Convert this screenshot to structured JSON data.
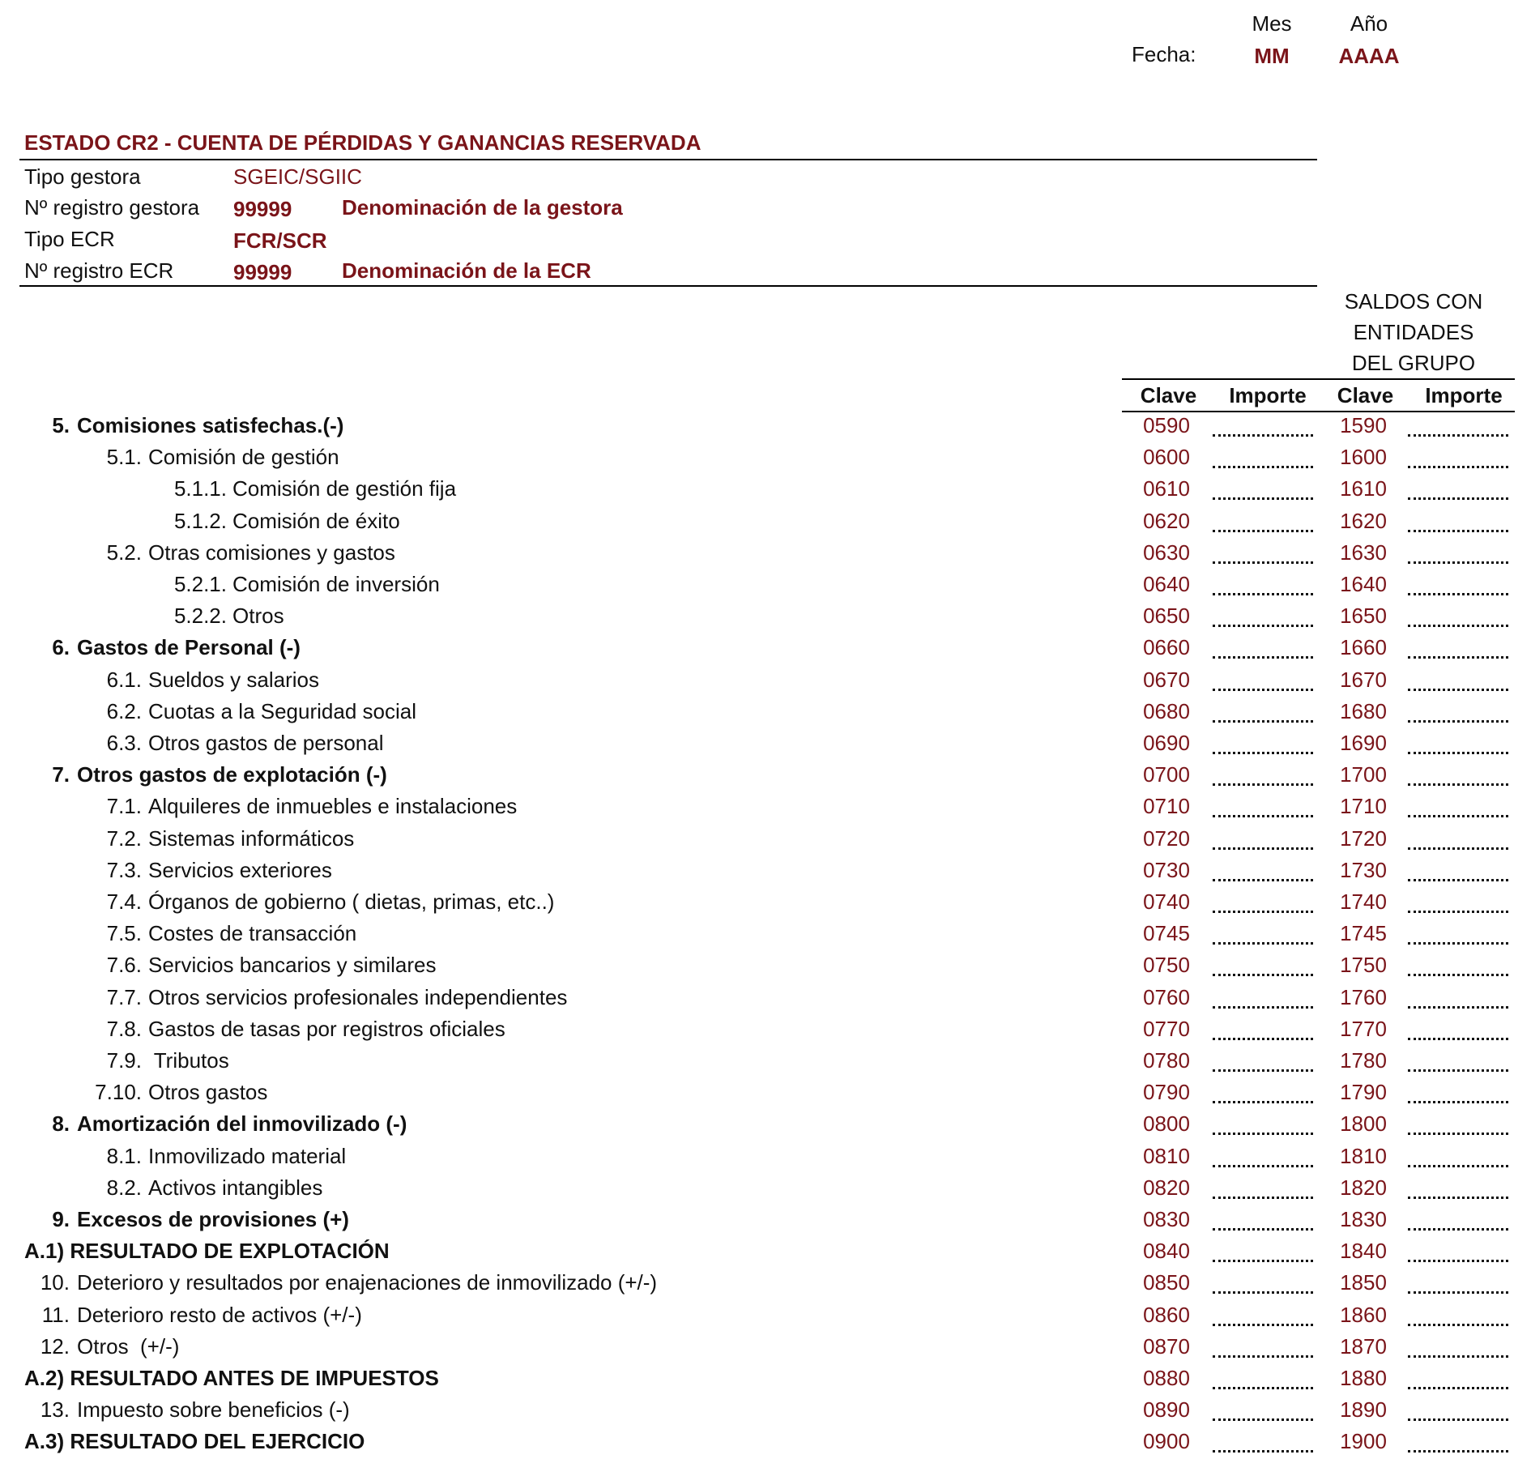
{
  "date": {
    "mes_label": "Mes",
    "ano_label": "Año",
    "fecha_label": "Fecha:",
    "mes_value": "MM",
    "ano_value": "AAAA"
  },
  "header": {
    "title": "ESTADO CR2 - CUENTA DE PÉRDIDAS Y GANANCIAS RESERVADA",
    "tipo_gestora_label": "Tipo gestora",
    "tipo_gestora_value": "SGEIC/SGIIC",
    "registro_gestora_label": "Nº registro gestora",
    "registro_gestora_value": "99999",
    "denominacion_gestora": "Denominación de la gestora",
    "tipo_ecr_label": "Tipo ECR",
    "tipo_ecr_value": "FCR/SCR",
    "registro_ecr_label": "Nº registro ECR",
    "registro_ecr_value": "99999",
    "denominacion_ecr": "Denominación de la ECR"
  },
  "columns": {
    "group_header": [
      "SALDOS CON",
      "ENTIDADES",
      "DEL GRUPO"
    ],
    "clave": "Clave",
    "importe": "Importe"
  },
  "rows": [
    {
      "num": "5.",
      "label": "Comisiones satisfechas.(-)",
      "clave1": "0590",
      "clave2": "1590",
      "level": 1,
      "bold": true
    },
    {
      "num": "5.1.",
      "label": "Comisión de gestión",
      "clave1": "0600",
      "clave2": "1600",
      "level": 2,
      "bold": false
    },
    {
      "num": "5.1.1.",
      "label": "Comisión de gestión fija",
      "clave1": "0610",
      "clave2": "1610",
      "level": 3,
      "bold": false
    },
    {
      "num": "5.1.2.",
      "label": "Comisión de éxito",
      "clave1": "0620",
      "clave2": "1620",
      "level": 3,
      "bold": false
    },
    {
      "num": "5.2.",
      "label": "Otras comisiones y gastos",
      "clave1": "0630",
      "clave2": "1630",
      "level": 2,
      "bold": false
    },
    {
      "num": "5.2.1.",
      "label": "Comisión de inversión",
      "clave1": "0640",
      "clave2": "1640",
      "level": 3,
      "bold": false
    },
    {
      "num": "5.2.2.",
      "label": "Otros",
      "clave1": "0650",
      "clave2": "1650",
      "level": 3,
      "bold": false
    },
    {
      "num": "6.",
      "label": "Gastos de Personal (-)",
      "clave1": "0660",
      "clave2": "1660",
      "level": 1,
      "bold": true
    },
    {
      "num": "6.1.",
      "label": "Sueldos y salarios",
      "clave1": "0670",
      "clave2": "1670",
      "level": 2,
      "bold": false
    },
    {
      "num": "6.2.",
      "label": "Cuotas a la Seguridad social",
      "clave1": "0680",
      "clave2": "1680",
      "level": 2,
      "bold": false
    },
    {
      "num": "6.3.",
      "label": "Otros gastos de personal",
      "clave1": "0690",
      "clave2": "1690",
      "level": 2,
      "bold": false
    },
    {
      "num": "7.",
      "label": "Otros gastos de explotación (-)",
      "clave1": "0700",
      "clave2": "1700",
      "level": 1,
      "bold": true
    },
    {
      "num": "7.1.",
      "label": "Alquileres de inmuebles e instalaciones",
      "clave1": "0710",
      "clave2": "1710",
      "level": 2,
      "bold": false
    },
    {
      "num": "7.2.",
      "label": "Sistemas informáticos",
      "clave1": "0720",
      "clave2": "1720",
      "level": 2,
      "bold": false
    },
    {
      "num": "7.3.",
      "label": "Servicios exteriores",
      "clave1": "0730",
      "clave2": "1730",
      "level": 2,
      "bold": false
    },
    {
      "num": "7.4.",
      "label": "Órganos de gobierno ( dietas, primas, etc..)",
      "clave1": "0740",
      "clave2": "1740",
      "level": 2,
      "bold": false
    },
    {
      "num": "7.5.",
      "label": "Costes de transacción",
      "clave1": "0745",
      "clave2": "1745",
      "level": 2,
      "bold": false
    },
    {
      "num": "7.6.",
      "label": "Servicios bancarios y similares",
      "clave1": "0750",
      "clave2": "1750",
      "level": 2,
      "bold": false
    },
    {
      "num": "7.7.",
      "label": "Otros servicios profesionales independientes",
      "clave1": "0760",
      "clave2": "1760",
      "level": 2,
      "bold": false
    },
    {
      "num": "7.8.",
      "label": "Gastos de tasas por registros oficiales",
      "clave1": "0770",
      "clave2": "1770",
      "level": 2,
      "bold": false
    },
    {
      "num": "7.9.",
      "label": " Tributos",
      "clave1": "0780",
      "clave2": "1780",
      "level": 2,
      "bold": false
    },
    {
      "num": "7.10.",
      "label": "Otros gastos",
      "clave1": "0790",
      "clave2": "1790",
      "level": 2,
      "bold": false
    },
    {
      "num": "8.",
      "label": "Amortización del inmovilizado (-)",
      "clave1": "0800",
      "clave2": "1800",
      "level": 1,
      "bold": true
    },
    {
      "num": "8.1.",
      "label": "Inmovilizado material",
      "clave1": "0810",
      "clave2": "1810",
      "level": 2,
      "bold": false
    },
    {
      "num": "8.2.",
      "label": "Activos intangibles",
      "clave1": "0820",
      "clave2": "1820",
      "level": 2,
      "bold": false
    },
    {
      "num": "9.",
      "label": "Excesos de provisiones (+)",
      "clave1": "0830",
      "clave2": "1830",
      "level": 1,
      "bold": true
    },
    {
      "num": "",
      "label": "A.1) RESULTADO DE EXPLOTACIÓN",
      "clave1": "0840",
      "clave2": "1840",
      "level": 0,
      "bold": true
    },
    {
      "num": "10.",
      "label": "Deterioro y resultados por enajenaciones de inmovilizado (+/-)",
      "clave1": "0850",
      "clave2": "1850",
      "level": 1,
      "bold": false
    },
    {
      "num": "11.",
      "label": "Deterioro resto de activos (+/-)",
      "clave1": "0860",
      "clave2": "1860",
      "level": 1,
      "bold": false
    },
    {
      "num": "12.",
      "label": "Otros  (+/-)",
      "clave1": "0870",
      "clave2": "1870",
      "level": 1,
      "bold": false
    },
    {
      "num": "",
      "label": "A.2) RESULTADO ANTES DE IMPUESTOS",
      "clave1": "0880",
      "clave2": "1880",
      "level": 0,
      "bold": true
    },
    {
      "num": "13.",
      "label": "Impuesto sobre beneficios (-)",
      "clave1": "0890",
      "clave2": "1890",
      "level": 1,
      "bold": false
    },
    {
      "num": "",
      "label": "A.3) RESULTADO DEL EJERCICIO",
      "clave1": "0900",
      "clave2": "1900",
      "level": 0,
      "bold": true
    }
  ]
}
